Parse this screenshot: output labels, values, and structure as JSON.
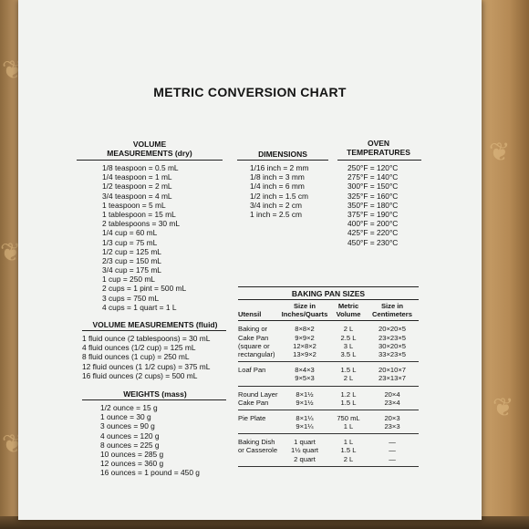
{
  "title": "METRIC CONVERSION CHART",
  "volume_dry": {
    "heading_line1": "VOLUME",
    "heading_line2": "MEASUREMENTS (dry)",
    "items": [
      "1/8 teaspoon = 0.5 mL",
      "1/4 teaspoon = 1 mL",
      "1/2 teaspoon = 2 mL",
      "3/4 teaspoon = 4 mL",
      "1 teaspoon = 5 mL",
      "1 tablespoon = 15 mL",
      "2 tablespoons = 30 mL",
      "1/4 cup = 60 mL",
      "1/3 cup = 75 mL",
      "1/2 cup = 125 mL",
      "2/3 cup = 150 mL",
      "3/4 cup = 175 mL",
      "1 cup = 250 mL",
      "2 cups = 1 pint = 500 mL",
      "3 cups = 750 mL",
      "4 cups = 1 quart = 1 L"
    ]
  },
  "volume_fluid": {
    "heading": "VOLUME MEASUREMENTS (fluid)",
    "items": [
      "1 fluid ounce (2 tablespoons) = 30 mL",
      "4 fluid ounces (1/2 cup) = 125 mL",
      "8 fluid ounces (1 cup) = 250 mL",
      "12 fluid ounces (1 1/2 cups) = 375 mL",
      "16 fluid ounces (2 cups) = 500 mL"
    ]
  },
  "weights": {
    "heading": "WEIGHTS (mass)",
    "items": [
      "1/2 ounce = 15 g",
      "1 ounce = 30 g",
      "3 ounces = 90 g",
      "4 ounces = 120 g",
      "8 ounces = 225 g",
      "10 ounces = 285 g",
      "12 ounces = 360 g",
      "16 ounces = 1 pound = 450 g"
    ]
  },
  "dimensions": {
    "heading": "DIMENSIONS",
    "items": [
      "1/16 inch = 2 mm",
      "1/8 inch = 3 mm",
      "1/4 inch = 6 mm",
      "1/2 inch = 1.5 cm",
      "3/4 inch = 2 cm",
      "1 inch = 2.5 cm"
    ]
  },
  "oven": {
    "heading_line1": "OVEN",
    "heading_line2": "TEMPERATURES",
    "items": [
      "250°F = 120°C",
      "275°F = 140°C",
      "300°F = 150°C",
      "325°F = 160°C",
      "350°F = 180°C",
      "375°F = 190°C",
      "400°F = 200°C",
      "425°F = 220°C",
      "450°F = 230°C"
    ]
  },
  "baking_pans": {
    "heading": "BAKING PAN SIZES",
    "col_utensil": "Utensil",
    "col_size_l1": "Size in",
    "col_size_l2": "Inches/Quarts",
    "col_metric_l1": "Metric",
    "col_metric_l2": "Volume",
    "col_cm_l1": "Size in",
    "col_cm_l2": "Centimeters",
    "rows": [
      {
        "utensil": [
          "Baking or",
          "Cake Pan",
          "(square or",
          "rectangular)"
        ],
        "sizes": [
          "8×8×2",
          "9×9×2",
          "12×8×2",
          "13×9×2"
        ],
        "metric": [
          "2 L",
          "2.5 L",
          "3 L",
          "3.5 L"
        ],
        "cm": [
          "20×20×5",
          "23×23×5",
          "30×20×5",
          "33×23×5"
        ]
      },
      {
        "utensil": [
          "Loaf Pan"
        ],
        "sizes": [
          "8×4×3",
          "9×5×3"
        ],
        "metric": [
          "1.5 L",
          "2 L"
        ],
        "cm": [
          "20×10×7",
          "23×13×7"
        ]
      },
      {
        "utensil": [
          "Round Layer",
          "Cake Pan"
        ],
        "sizes": [
          "8×1½",
          "9×1½"
        ],
        "metric": [
          "1.2 L",
          "1.5 L"
        ],
        "cm": [
          "20×4",
          "23×4"
        ]
      },
      {
        "utensil": [
          "Pie Plate"
        ],
        "sizes": [
          "8×1¼",
          "9×1¼"
        ],
        "metric": [
          "750 mL",
          "1 L"
        ],
        "cm": [
          "20×3",
          "23×3"
        ]
      },
      {
        "utensil": [
          "Baking Dish",
          "or Casserole"
        ],
        "sizes": [
          "1 quart",
          "1½ quart",
          "2 quart"
        ],
        "metric": [
          "1 L",
          "1.5 L",
          "2 L"
        ],
        "cm": [
          "—",
          "—",
          "—"
        ]
      }
    ]
  }
}
